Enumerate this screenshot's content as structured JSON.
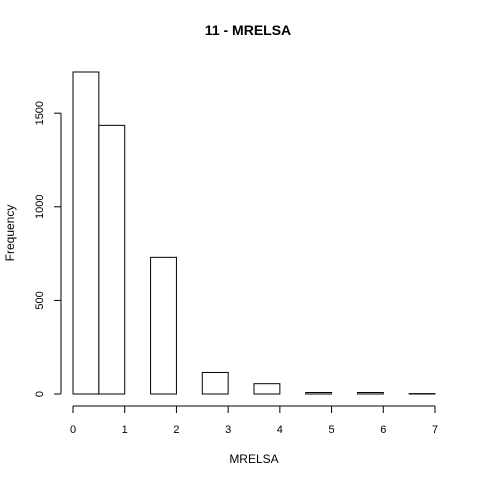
{
  "chart_data": {
    "type": "bar",
    "title": "11 - MRELSA",
    "xlabel": "MRELSA",
    "ylabel": "Frequency",
    "bin_edges": [
      0,
      0.5,
      1,
      1.5,
      2,
      2.5,
      3,
      3.5,
      4,
      4.5,
      5,
      5.5,
      6,
      6.5,
      7
    ],
    "values": [
      1720,
      1435,
      0,
      730,
      0,
      115,
      0,
      55,
      0,
      8,
      0,
      8,
      0,
      2
    ],
    "xlim": [
      0,
      7
    ],
    "ylim": [
      0,
      1720
    ],
    "x_ticks": [
      "0",
      "1",
      "2",
      "3",
      "4",
      "5",
      "6",
      "7"
    ],
    "y_ticks": [
      "0",
      "500",
      "1000",
      "1500"
    ],
    "grid": false
  }
}
